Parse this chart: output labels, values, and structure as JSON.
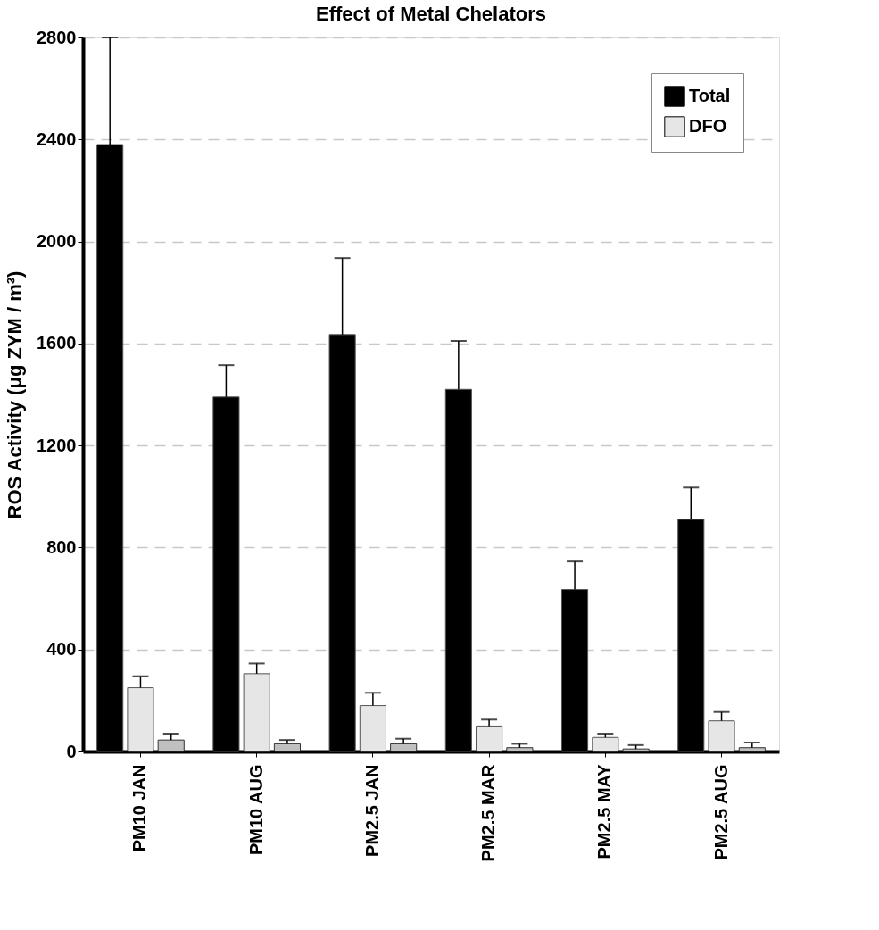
{
  "chart_data": {
    "type": "bar",
    "title": "Effect of Metal Chelators",
    "ylabel": "ROS Activity (μg ZYM / m³)",
    "categories": [
      "PM10 JAN",
      "PM10 AUG",
      "PM2.5 JAN",
      "PM2.5 MAR",
      "PM2.5 MAY",
      "PM2.5 AUG"
    ],
    "series": [
      {
        "name": "Total",
        "color": "#000000",
        "values": [
          2380,
          1390,
          1635,
          1420,
          635,
          910
        ],
        "errors": [
          [
            2380,
            2800
          ],
          [
            1390,
            1515
          ],
          [
            1635,
            1935
          ],
          [
            1420,
            1610
          ],
          [
            635,
            745
          ],
          [
            910,
            1035
          ]
        ]
      },
      {
        "name": "DFO",
        "color": "#e6e6e6",
        "values": [
          250,
          305,
          180,
          100,
          55,
          120
        ],
        "errors": [
          [
            250,
            295
          ],
          [
            305,
            345
          ],
          [
            180,
            230
          ],
          [
            100,
            125
          ],
          [
            55,
            70
          ],
          [
            120,
            155
          ]
        ]
      },
      {
        "color": "#c0c0c0",
        "values": [
          45,
          30,
          30,
          15,
          10,
          15
        ],
        "errors": [
          [
            45,
            70
          ],
          [
            30,
            45
          ],
          [
            30,
            50
          ],
          [
            15,
            30
          ],
          [
            10,
            25
          ],
          [
            15,
            35
          ]
        ]
      }
    ],
    "ylim": [
      0,
      2800
    ],
    "yticks": [
      0,
      400,
      800,
      1200,
      1600,
      2000,
      2400,
      2800
    ],
    "grid": "y",
    "legend": "top right"
  }
}
